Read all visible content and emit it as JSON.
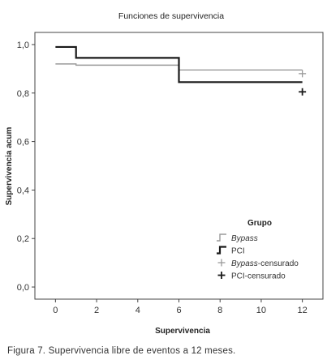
{
  "chart_data": {
    "type": "line",
    "step": true,
    "title": "Funciones de supervivencia",
    "xlabel": "Supervivencia",
    "ylabel": "Supervivencia acum",
    "xlim": [
      -1,
      13
    ],
    "ylim": [
      -0.05,
      1.05
    ],
    "xticks": [
      0,
      2,
      4,
      6,
      8,
      10,
      12
    ],
    "yticks": [
      0.0,
      0.2,
      0.4,
      0.6,
      0.8,
      1.0
    ],
    "yticklabels": [
      "0,0",
      "0,2",
      "0,4",
      "0,6",
      "0,8",
      "1,0"
    ],
    "grid": false,
    "legend_position": "bottom-right",
    "legend_title": "Grupo",
    "series": [
      {
        "name": "Bypass",
        "color": "#9a9a9a",
        "x": [
          0,
          1,
          6,
          12
        ],
        "y": [
          0.92,
          0.915,
          0.895,
          0.895
        ]
      },
      {
        "name": "PCI",
        "color": "#1a1a1a",
        "x": [
          0,
          1,
          6,
          12
        ],
        "y": [
          0.99,
          0.945,
          0.845,
          0.845
        ]
      }
    ],
    "censored": [
      {
        "name": "Bypass-censurado",
        "color": "#9a9a9a",
        "x": [
          12
        ],
        "y": [
          0.88
        ]
      },
      {
        "name": "PCI-censurado",
        "color": "#1a1a1a",
        "x": [
          12
        ],
        "y": [
          0.805
        ]
      }
    ]
  },
  "caption": "Figura 7. Supervivencia libre de eventos a 12 meses."
}
